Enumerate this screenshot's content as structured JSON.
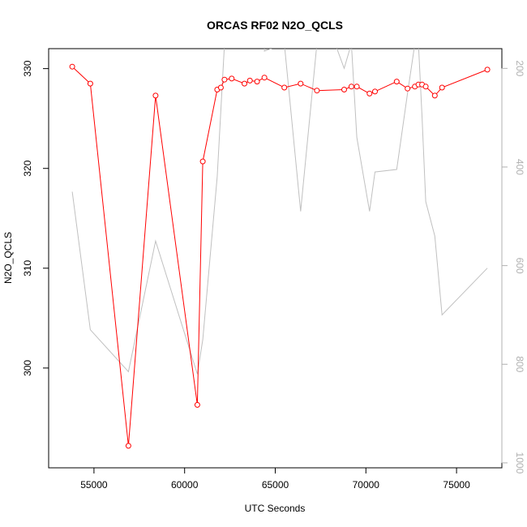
{
  "chart_data": {
    "type": "line",
    "title": "ORCAS RF02 N2O_QCLS",
    "xlabel": "UTC Seconds",
    "ylabel": "N2O_QCLS",
    "xlim": [
      52500,
      77500
    ],
    "ylim": [
      290,
      332
    ],
    "y2lim": [
      1010,
      160
    ],
    "x_ticks": [
      55000,
      60000,
      65000,
      70000,
      75000
    ],
    "y_ticks": [
      300,
      310,
      320,
      330
    ],
    "y2_ticks": [
      200,
      400,
      600,
      800,
      1000
    ],
    "grid": false,
    "series": [
      {
        "color": "#ff0000",
        "markers": "open-circle",
        "axis": "left",
        "x": [
          53800,
          54800,
          56900,
          58400,
          60700,
          61000,
          61800,
          62000,
          62200,
          62600,
          63300,
          63600,
          64000,
          64400,
          65500,
          66400,
          67300,
          68800,
          69200,
          69500,
          70200,
          70500,
          71700,
          72300,
          72700,
          72900,
          73100,
          73300,
          73800,
          74200,
          76700
        ],
        "y": [
          330.2,
          328.5,
          292.2,
          327.3,
          296.3,
          320.7,
          327.9,
          328.1,
          328.9,
          329.0,
          328.5,
          328.8,
          328.7,
          329.1,
          328.1,
          328.5,
          327.8,
          327.9,
          328.2,
          328.2,
          327.5,
          327.7,
          328.7,
          328.0,
          328.2,
          328.4,
          328.4,
          328.2,
          327.3,
          328.1,
          329.9
        ]
      },
      {
        "color": "#c0c0c0",
        "markers": "none",
        "axis": "right",
        "x": [
          53800,
          54800,
          56900,
          58400,
          60700,
          61000,
          61800,
          62200,
          64400,
          64400,
          65500,
          66400,
          67300,
          68300,
          68800,
          69200,
          69500,
          70200,
          70500,
          71700,
          72300,
          72700,
          72900,
          73100,
          73300,
          73800,
          74200,
          76700
        ],
        "y": [
          450,
          730,
          815,
          550,
          820,
          750,
          420,
          150,
          150,
          165,
          150,
          490,
          150,
          150,
          200,
          150,
          340,
          490,
          410,
          405,
          250,
          150,
          150,
          300,
          470,
          540,
          700,
          605
        ]
      }
    ]
  }
}
